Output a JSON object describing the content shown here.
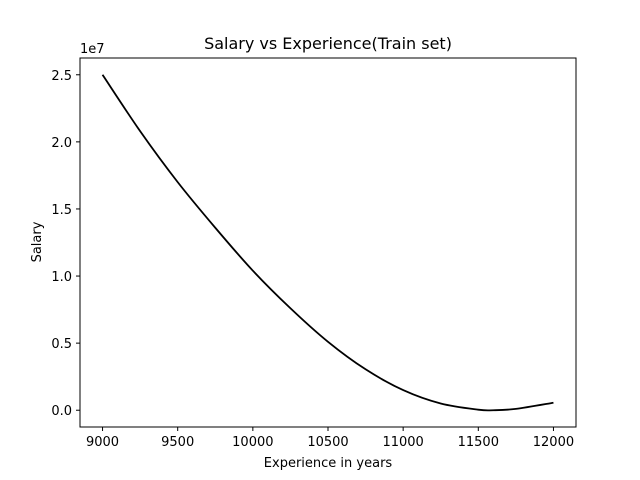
{
  "chart_data": {
    "type": "line",
    "title": "Salary vs Experience(Train set)",
    "xlabel": "Experience in years",
    "ylabel": "Salary",
    "y_offset_label": "1e7",
    "xlim": [
      8850,
      12150
    ],
    "ylim": [
      -1250000,
      26250000
    ],
    "x_ticks": [
      9000,
      9500,
      10000,
      10500,
      11000,
      11500,
      12000
    ],
    "x_tick_labels": [
      "9000",
      "9500",
      "10000",
      "10500",
      "11000",
      "11500",
      "12000"
    ],
    "y_ticks": [
      0,
      5000000,
      10000000,
      15000000,
      20000000,
      25000000
    ],
    "y_tick_labels": [
      "0.0",
      "0.5",
      "1.0",
      "1.5",
      "2.0",
      "2.5"
    ],
    "grid": false,
    "series": [
      {
        "color": "#000000",
        "x": [
          9000,
          9250,
          9500,
          9750,
          10000,
          10250,
          10500,
          10750,
          11000,
          11250,
          11500,
          11600,
          11750,
          12000
        ],
        "y": [
          25000000,
          20800000,
          17000000,
          13600000,
          10400000,
          7600000,
          5100000,
          3050000,
          1500000,
          500000,
          40000,
          0,
          100000,
          560000
        ]
      }
    ]
  }
}
